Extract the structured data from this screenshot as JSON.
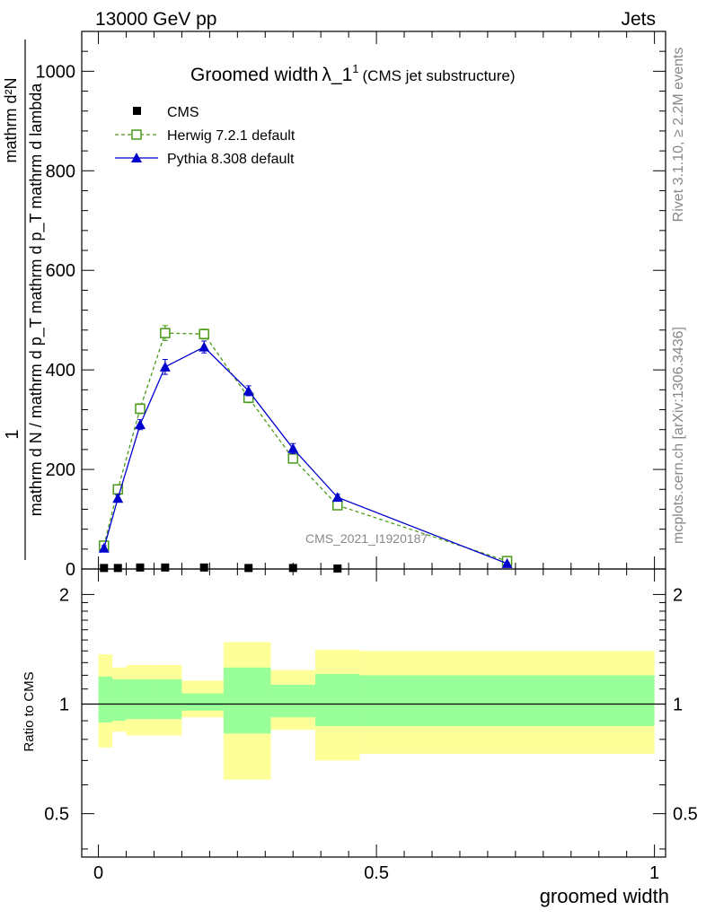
{
  "header": {
    "left": "13000 GeV pp",
    "right": "Jets"
  },
  "side_labels": {
    "rivet": "Rivet 3.1.10, ≥ 2.2M events",
    "mcplots": "mcplots.cern.ch [arXiv:1306.3436]"
  },
  "chart_data": {
    "type": "line",
    "title": "Groomed width",
    "title_sym": "λ_1",
    "title_sup": "1",
    "subtitle": "(CMS jet substructure)",
    "watermark": "CMS_2021_I1920187",
    "xlabel": "groomed width",
    "xlim": [
      -0.03,
      1.02
    ],
    "upper": {
      "ylim": [
        0,
        1080
      ],
      "yticks": [
        0,
        200,
        400,
        600,
        800,
        1000
      ],
      "ylabel_num": "1",
      "ylabel_den": "mathrm d N / mathrm d p_T mathrm d p_T mathrm d lambda",
      "ylabel_den2": "mathrm d²N",
      "series": [
        {
          "name": "CMS",
          "style": "marker",
          "color": "#000000",
          "points": [
            [
              0.01,
              2
            ],
            [
              0.035,
              2
            ],
            [
              0.075,
              3
            ],
            [
              0.12,
              3
            ],
            [
              0.19,
              3
            ],
            [
              0.27,
              2
            ],
            [
              0.35,
              2
            ],
            [
              0.43,
              1
            ]
          ]
        },
        {
          "name": "Herwig 7.2.1 default",
          "style": "dashed-open-square",
          "color": "#4a9a1a",
          "points": [
            [
              0.01,
              47,
              5
            ],
            [
              0.035,
              160,
              7
            ],
            [
              0.075,
              322,
              10
            ],
            [
              0.12,
              474,
              15
            ],
            [
              0.19,
              472,
              10
            ],
            [
              0.27,
              344,
              10
            ],
            [
              0.35,
              222,
              8
            ],
            [
              0.43,
              128,
              6
            ],
            [
              0.735,
              16,
              2
            ]
          ]
        },
        {
          "name": "Pythia 8.308 default",
          "style": "solid-filled-triangle",
          "color": "#0000cc",
          "points": [
            [
              0.01,
              42,
              5
            ],
            [
              0.035,
              142,
              7
            ],
            [
              0.075,
              290,
              10
            ],
            [
              0.12,
              406,
              15
            ],
            [
              0.19,
              446,
              12
            ],
            [
              0.27,
              358,
              10
            ],
            [
              0.35,
              242,
              10
            ],
            [
              0.43,
              144,
              6
            ],
            [
              0.735,
              11,
              2
            ]
          ]
        }
      ]
    },
    "ratio": {
      "ylabel": "Ratio to CMS",
      "yticks": [
        0.5,
        1,
        2
      ],
      "ylim": [
        0.38,
        2.35
      ],
      "bands": [
        {
          "x0": 0.0,
          "x1": 0.025,
          "inner": [
            0.89,
            1.19
          ],
          "outer": [
            0.76,
            1.37
          ]
        },
        {
          "x0": 0.025,
          "x1": 0.05,
          "inner": [
            0.9,
            1.17
          ],
          "outer": [
            0.84,
            1.26
          ]
        },
        {
          "x0": 0.05,
          "x1": 0.1,
          "inner": [
            0.91,
            1.17
          ],
          "outer": [
            0.82,
            1.28
          ]
        },
        {
          "x0": 0.1,
          "x1": 0.15,
          "inner": [
            0.91,
            1.17
          ],
          "outer": [
            0.82,
            1.28
          ]
        },
        {
          "x0": 0.15,
          "x1": 0.225,
          "inner": [
            0.96,
            1.07
          ],
          "outer": [
            0.92,
            1.16
          ]
        },
        {
          "x0": 0.225,
          "x1": 0.31,
          "inner": [
            0.83,
            1.26
          ],
          "outer": [
            0.62,
            1.48
          ]
        },
        {
          "x0": 0.31,
          "x1": 0.39,
          "inner": [
            0.92,
            1.13
          ],
          "outer": [
            0.85,
            1.24
          ]
        },
        {
          "x0": 0.39,
          "x1": 0.47,
          "inner": [
            0.87,
            1.21
          ],
          "outer": [
            0.7,
            1.41
          ]
        },
        {
          "x0": 0.47,
          "x1": 1.0,
          "inner": [
            0.87,
            1.2
          ],
          "outer": [
            0.73,
            1.4
          ]
        }
      ]
    },
    "xticks": [
      0,
      0.5,
      1
    ]
  }
}
